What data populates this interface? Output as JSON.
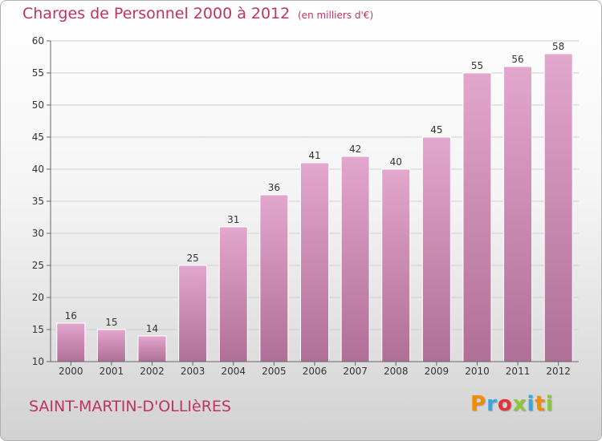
{
  "header": {
    "title": "Charges de Personnel 2000 à 2012",
    "subtitle": "(en milliers d'€)"
  },
  "footer": {
    "commune": "SAINT-MARTIN-D'OLLIèRES",
    "brand": "Proxiti",
    "brand_colors": [
      "#f28c00",
      "#3aa6dd",
      "#e8303a",
      "#8cc63f",
      "#3aa6dd",
      "#f28c00",
      "#8cc63f"
    ]
  },
  "chart_data": {
    "type": "bar",
    "title": "Charges de Personnel 2000 à 2012",
    "subtitle": "(en milliers d'€)",
    "categories": [
      "2000",
      "2001",
      "2002",
      "2003",
      "2004",
      "2005",
      "2006",
      "2007",
      "2008",
      "2009",
      "2010",
      "2011",
      "2012"
    ],
    "values": [
      16,
      15,
      14,
      25,
      31,
      36,
      41,
      42,
      40,
      45,
      55,
      56,
      58
    ],
    "value_labels": [
      "16",
      "15",
      "14",
      "25",
      "31",
      "36",
      "41",
      "42",
      "40",
      "45",
      "55",
      "56",
      "58"
    ],
    "ylim": [
      10,
      60
    ],
    "yticks": [
      "10",
      "15",
      "20",
      "25",
      "30",
      "35",
      "40",
      "45",
      "50",
      "55",
      "60"
    ],
    "grid": true,
    "bar_color_top": "#e3a6cc",
    "bar_color_bottom": "#b06f96",
    "xlabel": "",
    "ylabel": ""
  }
}
